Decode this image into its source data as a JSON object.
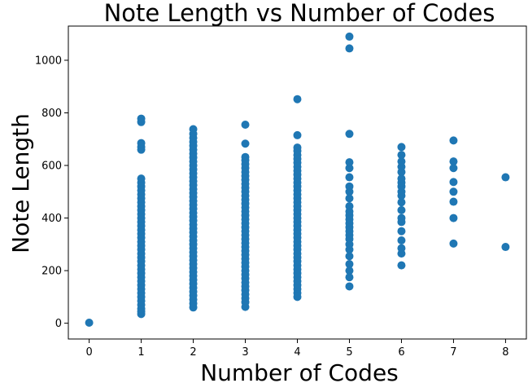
{
  "chart_data": {
    "type": "scatter",
    "title": "Note Length vs Number of Codes",
    "xlabel": "Number of Codes",
    "ylabel": "Note Length",
    "xlim": [
      -0.4,
      8.4
    ],
    "ylim": [
      -60,
      1130
    ],
    "xticks": [
      0,
      1,
      2,
      3,
      4,
      5,
      6,
      7,
      8
    ],
    "yticks": [
      0,
      200,
      400,
      600,
      800,
      1000
    ],
    "grid": false,
    "legend": "none",
    "marker_color": "#1f77b4",
    "series": [
      {
        "points": [
          [
            0,
            2
          ],
          [
            1,
            35
          ],
          [
            1,
            45
          ],
          [
            1,
            55
          ],
          [
            1,
            70
          ],
          [
            1,
            85
          ],
          [
            1,
            100
          ],
          [
            1,
            115
          ],
          [
            1,
            130
          ],
          [
            1,
            145
          ],
          [
            1,
            160
          ],
          [
            1,
            175
          ],
          [
            1,
            190
          ],
          [
            1,
            205
          ],
          [
            1,
            220
          ],
          [
            1,
            235
          ],
          [
            1,
            250
          ],
          [
            1,
            265
          ],
          [
            1,
            280
          ],
          [
            1,
            295
          ],
          [
            1,
            310
          ],
          [
            1,
            325
          ],
          [
            1,
            340
          ],
          [
            1,
            355
          ],
          [
            1,
            370
          ],
          [
            1,
            385
          ],
          [
            1,
            400
          ],
          [
            1,
            415
          ],
          [
            1,
            430
          ],
          [
            1,
            445
          ],
          [
            1,
            460
          ],
          [
            1,
            475
          ],
          [
            1,
            490
          ],
          [
            1,
            505
          ],
          [
            1,
            520
          ],
          [
            1,
            535
          ],
          [
            1,
            550
          ],
          [
            1,
            660
          ],
          [
            1,
            670
          ],
          [
            1,
            685
          ],
          [
            1,
            765
          ],
          [
            1,
            778
          ],
          [
            2,
            60
          ],
          [
            2,
            75
          ],
          [
            2,
            90
          ],
          [
            2,
            105
          ],
          [
            2,
            120
          ],
          [
            2,
            135
          ],
          [
            2,
            150
          ],
          [
            2,
            165
          ],
          [
            2,
            180
          ],
          [
            2,
            195
          ],
          [
            2,
            210
          ],
          [
            2,
            225
          ],
          [
            2,
            240
          ],
          [
            2,
            255
          ],
          [
            2,
            270
          ],
          [
            2,
            285
          ],
          [
            2,
            300
          ],
          [
            2,
            315
          ],
          [
            2,
            330
          ],
          [
            2,
            345
          ],
          [
            2,
            360
          ],
          [
            2,
            375
          ],
          [
            2,
            390
          ],
          [
            2,
            405
          ],
          [
            2,
            420
          ],
          [
            2,
            435
          ],
          [
            2,
            450
          ],
          [
            2,
            465
          ],
          [
            2,
            480
          ],
          [
            2,
            495
          ],
          [
            2,
            510
          ],
          [
            2,
            525
          ],
          [
            2,
            540
          ],
          [
            2,
            555
          ],
          [
            2,
            570
          ],
          [
            2,
            585
          ],
          [
            2,
            600
          ],
          [
            2,
            615
          ],
          [
            2,
            630
          ],
          [
            2,
            645
          ],
          [
            2,
            660
          ],
          [
            2,
            675
          ],
          [
            2,
            690
          ],
          [
            2,
            705
          ],
          [
            2,
            720
          ],
          [
            2,
            738
          ],
          [
            3,
            62
          ],
          [
            3,
            80
          ],
          [
            3,
            95
          ],
          [
            3,
            110
          ],
          [
            3,
            125
          ],
          [
            3,
            140
          ],
          [
            3,
            155
          ],
          [
            3,
            170
          ],
          [
            3,
            185
          ],
          [
            3,
            200
          ],
          [
            3,
            215
          ],
          [
            3,
            230
          ],
          [
            3,
            245
          ],
          [
            3,
            260
          ],
          [
            3,
            275
          ],
          [
            3,
            290
          ],
          [
            3,
            305
          ],
          [
            3,
            320
          ],
          [
            3,
            335
          ],
          [
            3,
            350
          ],
          [
            3,
            365
          ],
          [
            3,
            380
          ],
          [
            3,
            395
          ],
          [
            3,
            410
          ],
          [
            3,
            425
          ],
          [
            3,
            440
          ],
          [
            3,
            455
          ],
          [
            3,
            470
          ],
          [
            3,
            485
          ],
          [
            3,
            500
          ],
          [
            3,
            515
          ],
          [
            3,
            530
          ],
          [
            3,
            545
          ],
          [
            3,
            560
          ],
          [
            3,
            575
          ],
          [
            3,
            590
          ],
          [
            3,
            605
          ],
          [
            3,
            620
          ],
          [
            3,
            632
          ],
          [
            3,
            683
          ],
          [
            3,
            755
          ],
          [
            4,
            100
          ],
          [
            4,
            115
          ],
          [
            4,
            130
          ],
          [
            4,
            145
          ],
          [
            4,
            160
          ],
          [
            4,
            175
          ],
          [
            4,
            190
          ],
          [
            4,
            205
          ],
          [
            4,
            220
          ],
          [
            4,
            235
          ],
          [
            4,
            250
          ],
          [
            4,
            265
          ],
          [
            4,
            280
          ],
          [
            4,
            295
          ],
          [
            4,
            310
          ],
          [
            4,
            325
          ],
          [
            4,
            340
          ],
          [
            4,
            355
          ],
          [
            4,
            370
          ],
          [
            4,
            385
          ],
          [
            4,
            400
          ],
          [
            4,
            415
          ],
          [
            4,
            430
          ],
          [
            4,
            445
          ],
          [
            4,
            460
          ],
          [
            4,
            475
          ],
          [
            4,
            490
          ],
          [
            4,
            505
          ],
          [
            4,
            520
          ],
          [
            4,
            535
          ],
          [
            4,
            550
          ],
          [
            4,
            565
          ],
          [
            4,
            580
          ],
          [
            4,
            595
          ],
          [
            4,
            610
          ],
          [
            4,
            625
          ],
          [
            4,
            640
          ],
          [
            4,
            655
          ],
          [
            4,
            668
          ],
          [
            4,
            715
          ],
          [
            4,
            852
          ],
          [
            5,
            140
          ],
          [
            5,
            175
          ],
          [
            5,
            200
          ],
          [
            5,
            225
          ],
          [
            5,
            255
          ],
          [
            5,
            280
          ],
          [
            5,
            300
          ],
          [
            5,
            320
          ],
          [
            5,
            335
          ],
          [
            5,
            350
          ],
          [
            5,
            365
          ],
          [
            5,
            380
          ],
          [
            5,
            395
          ],
          [
            5,
            410
          ],
          [
            5,
            425
          ],
          [
            5,
            445
          ],
          [
            5,
            475
          ],
          [
            5,
            500
          ],
          [
            5,
            520
          ],
          [
            5,
            555
          ],
          [
            5,
            590
          ],
          [
            5,
            612
          ],
          [
            5,
            720
          ],
          [
            5,
            1045
          ],
          [
            5,
            1090
          ],
          [
            6,
            220
          ],
          [
            6,
            265
          ],
          [
            6,
            285
          ],
          [
            6,
            315
          ],
          [
            6,
            350
          ],
          [
            6,
            385
          ],
          [
            6,
            400
          ],
          [
            6,
            430
          ],
          [
            6,
            460
          ],
          [
            6,
            485
          ],
          [
            6,
            500
          ],
          [
            6,
            520
          ],
          [
            6,
            535
          ],
          [
            6,
            550
          ],
          [
            6,
            575
          ],
          [
            6,
            595
          ],
          [
            6,
            615
          ],
          [
            6,
            640
          ],
          [
            6,
            670
          ],
          [
            7,
            303
          ],
          [
            7,
            400
          ],
          [
            7,
            462
          ],
          [
            7,
            500
          ],
          [
            7,
            537
          ],
          [
            7,
            590
          ],
          [
            7,
            615
          ],
          [
            7,
            695
          ],
          [
            8,
            290
          ],
          [
            8,
            555
          ]
        ]
      }
    ]
  }
}
